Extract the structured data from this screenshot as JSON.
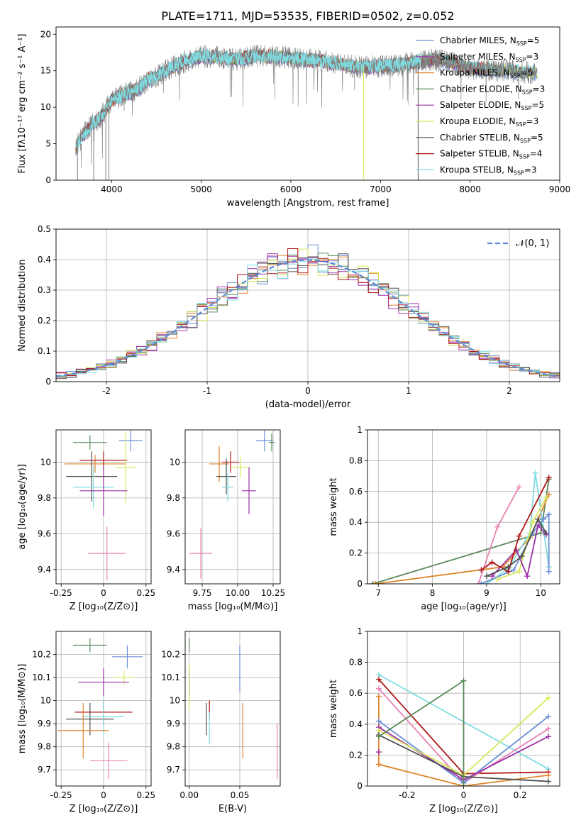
{
  "title": "PLATE=1711, MJD=53535, FIBERID=0502, z=0.052",
  "colors": {
    "Chabrier MILES": "#6b8fd6",
    "Salpeter MILES": "#a63cb0",
    "Kroupa MILES": "#e0852a",
    "Chabrier ELODIE": "#5a8a5a",
    "Salpeter ELODIE": "#9b30a8",
    "Kroupa ELODIE": "#d8e85a",
    "Chabrier STELIB": "#505050",
    "Salpeter STELIB": "#b01818",
    "Kroupa STELIB": "#7fdbe0",
    "pink": "#e882b4",
    "spectrum_grey": "#808080",
    "normal_curve": "#5b88d6"
  },
  "chart_data": [
    {
      "id": "spectrum",
      "type": "line",
      "xlabel": "wavelength [Angstrom, rest frame]",
      "ylabel": "Flux [fλ10⁻¹⁷ erg cm⁻² s⁻¹ A⁻¹]",
      "xlim": [
        3380,
        9000
      ],
      "ylim": [
        0,
        21
      ],
      "xticks": [
        4000,
        5000,
        6000,
        7000,
        8000,
        9000
      ],
      "yticks": [
        0,
        5,
        10,
        15,
        20
      ],
      "grid": false,
      "legend_position": "top-right",
      "legend": [
        {
          "label": "Chabrier MILES, N",
          "sub": "SSP",
          "n": "=5",
          "color": "#6b8fd6"
        },
        {
          "label": "Salpeter MILES, N",
          "sub": "SSP",
          "n": "=3",
          "color": "#a63cb0"
        },
        {
          "label": "Kroupa MILES, N",
          "sub": "SSP",
          "n": "=5",
          "color": "#e0852a"
        },
        {
          "label": "Chabrier ELODIE, N",
          "sub": "SSP",
          "n": "=3",
          "color": "#5a8a5a"
        },
        {
          "label": "Salpeter ELODIE, N",
          "sub": "SSP",
          "n": "=5",
          "color": "#9b30a8"
        },
        {
          "label": "Kroupa ELODIE, N",
          "sub": "SSP",
          "n": "=3",
          "color": "#d8e85a"
        },
        {
          "label": "Chabrier STELIB, N",
          "sub": "SSP",
          "n": "=5",
          "color": "#505050"
        },
        {
          "label": "Salpeter STELIB, N",
          "sub": "SSP",
          "n": "=4",
          "color": "#b01818"
        },
        {
          "label": "Kroupa STELIB, N",
          "sub": "SSP",
          "n": "=3",
          "color": "#7fdbe0"
        }
      ],
      "continuum": {
        "x": [
          3600,
          3700,
          3800,
          3900,
          4000,
          4100,
          4200,
          4300,
          4400,
          4500,
          4600,
          4800,
          5000,
          5200,
          5400,
          5600,
          5800,
          6000,
          6200,
          6400,
          6600,
          6800,
          7000,
          7200,
          7400,
          7600,
          7800,
          8000,
          8200,
          8400,
          8600,
          8750
        ],
        "y": [
          4.5,
          6.5,
          7.8,
          9.0,
          11.0,
          11.5,
          12.0,
          12.5,
          13.8,
          14.2,
          15.0,
          16.2,
          17.0,
          16.8,
          16.5,
          17.0,
          17.0,
          16.8,
          16.5,
          16.2,
          15.8,
          15.5,
          15.6,
          15.8,
          16.2,
          16.5,
          16.2,
          15.3,
          15.2,
          15.0,
          14.8,
          14.7
        ]
      },
      "model_range": [
        3600,
        7450
      ],
      "dropouts": [
        3620,
        3800,
        3935,
        3970,
        6810,
        7420
      ]
    },
    {
      "id": "residuals",
      "type": "histogram",
      "xlabel": "(data-model)/error",
      "ylabel": "Normed distribution",
      "xlim": [
        -2.5,
        2.5
      ],
      "ylim": [
        0,
        0.5
      ],
      "xticks": [
        -2,
        -1,
        0,
        1,
        2
      ],
      "yticks": [
        0,
        0.1,
        0.2,
        0.3,
        0.4,
        0.5
      ],
      "grid": true,
      "legend_position": "top-right",
      "legend_label": "𝒩(0, 1)",
      "bin_width": 0.1,
      "curve": {
        "type": "gaussian",
        "mu": 0,
        "sigma": 1
      }
    },
    {
      "id": "age_vs_Z",
      "type": "errorbar",
      "xlabel": "Z [log₁₀(Z/Z⊙)]",
      "ylabel": "age  [log₁₀(age/yr)]",
      "xlim": [
        -0.28,
        0.28
      ],
      "ylim": [
        9.32,
        10.18
      ],
      "xticks": [
        -0.25,
        0.0,
        0.25
      ],
      "yticks": [
        9.4,
        9.6,
        9.8,
        10.0
      ],
      "grid": true,
      "points": [
        {
          "color": "#6b8fd6",
          "x": 0.16,
          "y": 10.12,
          "xerr": 0.07,
          "yerr": 0.06
        },
        {
          "color": "#5a8a5a",
          "x": -0.08,
          "y": 10.11,
          "xerr": 0.1,
          "yerr": 0.04
        },
        {
          "color": "#e0852a",
          "x": -0.05,
          "y": 9.99,
          "xerr": 0.18,
          "yerr": 0.05
        },
        {
          "color": "#b01818",
          "x": 0.0,
          "y": 10.01,
          "xerr": 0.14,
          "yerr": 0.05
        },
        {
          "color": "#d8e85a",
          "x": 0.13,
          "y": 9.97,
          "xerr": 0.06,
          "yerr": 0.2
        },
        {
          "color": "#505050",
          "x": -0.07,
          "y": 9.92,
          "xerr": 0.15,
          "yerr": 0.14
        },
        {
          "color": "#7fdbe0",
          "x": -0.06,
          "y": 9.86,
          "xerr": 0.12,
          "yerr": 0.12
        },
        {
          "color": "#9b30a8",
          "x": 0.0,
          "y": 9.84,
          "xerr": 0.14,
          "yerr": 0.14
        },
        {
          "color": "#e882b4",
          "x": 0.02,
          "y": 9.49,
          "xerr": 0.11,
          "yerr": 0.15
        }
      ]
    },
    {
      "id": "age_vs_mass",
      "type": "errorbar",
      "xlabel": "mass [log₁₀(M/M⊙)]",
      "ylabel": "",
      "xlim": [
        9.63,
        10.3
      ],
      "ylim": [
        9.32,
        10.18
      ],
      "xticks": [
        9.75,
        10.0,
        10.25
      ],
      "xtick_labels": [
        "9.75",
        "10.00",
        "10.25"
      ],
      "yticks": [
        9.4,
        9.6,
        9.8,
        10.0
      ],
      "grid": true,
      "points": [
        {
          "color": "#6b8fd6",
          "x": 10.19,
          "y": 10.12,
          "xerr": 0.06,
          "yerr": 0.06
        },
        {
          "color": "#5a8a5a",
          "x": 10.24,
          "y": 10.11,
          "xerr": 0.02,
          "yerr": 0.05
        },
        {
          "color": "#e0852a",
          "x": 9.87,
          "y": 9.99,
          "xerr": 0.07,
          "yerr": 0.1
        },
        {
          "color": "#b01818",
          "x": 9.95,
          "y": 10.0,
          "xerr": 0.06,
          "yerr": 0.06
        },
        {
          "color": "#d8e85a",
          "x": 10.02,
          "y": 9.97,
          "xerr": 0.07,
          "yerr": 0.06
        },
        {
          "color": "#505050",
          "x": 9.92,
          "y": 9.92,
          "xerr": 0.07,
          "yerr": 0.1
        },
        {
          "color": "#7fdbe0",
          "x": 9.93,
          "y": 9.86,
          "xerr": 0.04,
          "yerr": 0.08
        },
        {
          "color": "#9b30a8",
          "x": 10.08,
          "y": 9.84,
          "xerr": 0.05,
          "yerr": 0.13
        },
        {
          "color": "#e882b4",
          "x": 9.74,
          "y": 9.49,
          "xerr": 0.08,
          "yerr": 0.14
        }
      ]
    },
    {
      "id": "weight_vs_age",
      "type": "line",
      "xlabel": "age  [log₁₀(age/yr)]",
      "ylabel": "mass weight",
      "xlim": [
        6.8,
        10.35
      ],
      "ylim": [
        0,
        1.0
      ],
      "xticks": [
        7,
        8,
        9,
        10
      ],
      "yticks": [
        0,
        0.2,
        0.4,
        0.6,
        0.8,
        1.0
      ],
      "grid": true,
      "series": [
        {
          "color": "#5a8a5a",
          "x": [
            6.9,
            10.0,
            10.15
          ],
          "y": [
            0.0,
            0.33,
            0.68
          ]
        },
        {
          "color": "#e0852a",
          "x": [
            6.95,
            9.3,
            9.8,
            10.15
          ],
          "y": [
            0.0,
            0.11,
            0.3,
            0.58
          ]
        },
        {
          "color": "#e882b4",
          "x": [
            8.85,
            9.2,
            9.6
          ],
          "y": [
            0.0,
            0.37,
            0.63
          ]
        },
        {
          "color": "#7fdbe0",
          "x": [
            9.0,
            9.4,
            9.8,
            9.9,
            10.15
          ],
          "y": [
            0.0,
            0.1,
            0.33,
            0.72,
            0.11
          ]
        },
        {
          "color": "#6b8fd6",
          "x": [
            8.9,
            9.5,
            9.85,
            10.05,
            10.15,
            10.15
          ],
          "y": [
            0.0,
            0.09,
            0.33,
            0.42,
            0.45,
            0.08
          ]
        },
        {
          "color": "#d8e85a",
          "x": [
            9.2,
            9.6,
            9.85,
            10.1
          ],
          "y": [
            0.03,
            0.08,
            0.4,
            0.56
          ]
        },
        {
          "color": "#9b30a8",
          "x": [
            9.1,
            9.55,
            9.75,
            9.95,
            10.1
          ],
          "y": [
            0.05,
            0.22,
            0.05,
            0.38,
            0.32
          ]
        },
        {
          "color": "#b01818",
          "x": [
            8.9,
            9.1,
            9.4,
            9.6,
            10.15
          ],
          "y": [
            0.09,
            0.14,
            0.08,
            0.31,
            0.69
          ]
        },
        {
          "color": "#505050",
          "x": [
            9.0,
            9.4,
            9.65,
            9.95,
            10.1
          ],
          "y": [
            0.05,
            0.11,
            0.18,
            0.42,
            0.33
          ]
        }
      ]
    },
    {
      "id": "mass_vs_Z",
      "type": "errorbar",
      "xlabel": "Z [log₁₀(Z/Z⊙)]",
      "ylabel": "mass [log₁₀(M/M⊙)]",
      "xlim": [
        -0.28,
        0.28
      ],
      "ylim": [
        9.63,
        10.3
      ],
      "xticks": [
        -0.25,
        0.0,
        0.25
      ],
      "yticks": [
        9.7,
        9.8,
        9.9,
        10.0,
        10.1,
        10.2
      ],
      "grid": true,
      "points": [
        {
          "color": "#5a8a5a",
          "x": -0.08,
          "y": 10.24,
          "xerr": 0.1,
          "yerr": 0.03
        },
        {
          "color": "#6b8fd6",
          "x": 0.14,
          "y": 10.19,
          "xerr": 0.09,
          "yerr": 0.05
        },
        {
          "color": "#d8e85a",
          "x": 0.12,
          "y": 10.1,
          "xerr": 0.06,
          "yerr": 0.03
        },
        {
          "color": "#9b30a8",
          "x": 0.0,
          "y": 10.08,
          "xerr": 0.15,
          "yerr": 0.06
        },
        {
          "color": "#b01818",
          "x": 0.0,
          "y": 9.95,
          "xerr": 0.17,
          "yerr": 0.05
        },
        {
          "color": "#505050",
          "x": -0.08,
          "y": 9.92,
          "xerr": 0.14,
          "yerr": 0.07
        },
        {
          "color": "#7fdbe0",
          "x": 0.0,
          "y": 9.93,
          "xerr": 0.12,
          "yerr": 0.08
        },
        {
          "color": "#e0852a",
          "x": -0.12,
          "y": 9.87,
          "xerr": 0.15,
          "yerr": 0.12
        },
        {
          "color": "#e882b4",
          "x": 0.03,
          "y": 9.74,
          "xerr": 0.11,
          "yerr": 0.08
        }
      ]
    },
    {
      "id": "mass_vs_ebv",
      "type": "errorbar",
      "xlabel": "E(B-V)",
      "ylabel": "",
      "xlim": [
        -0.004,
        0.09
      ],
      "ylim": [
        9.63,
        10.3
      ],
      "xticks": [
        0.0,
        0.05
      ],
      "xtick_labels": [
        "0.00",
        "0.05"
      ],
      "yticks": [
        9.7,
        9.8,
        9.9,
        10.0,
        10.1,
        10.2
      ],
      "grid": true,
      "points": [
        {
          "color": "#5a8a5a",
          "x": 0.0,
          "y": 10.24,
          "xerr": 0,
          "yerr": 0.03
        },
        {
          "color": "#9b30a8",
          "x": 0.0,
          "y": 10.08,
          "xerr": 0,
          "yerr": 0.06
        },
        {
          "color": "#d8e85a",
          "x": 0.0,
          "y": 10.06,
          "xerr": 0,
          "yerr": 0.1
        },
        {
          "color": "#6b8fd6",
          "x": 0.05,
          "y": 10.14,
          "xerr": 0,
          "yerr": 0.1
        },
        {
          "color": "#505050",
          "x": 0.017,
          "y": 9.92,
          "xerr": 0,
          "yerr": 0.07
        },
        {
          "color": "#b01818",
          "x": 0.02,
          "y": 9.96,
          "xerr": 0,
          "yerr": 0.04
        },
        {
          "color": "#7fdbe0",
          "x": 0.02,
          "y": 9.88,
          "xerr": 0,
          "yerr": 0.07
        },
        {
          "color": "#e0852a",
          "x": 0.053,
          "y": 9.87,
          "xerr": 0,
          "yerr": 0.12
        },
        {
          "color": "#e882b4",
          "x": 0.087,
          "y": 9.78,
          "xerr": 0,
          "yerr": 0.12
        }
      ]
    },
    {
      "id": "weight_vs_Z",
      "type": "line",
      "xlabel": "Z [log₁₀(Z/Z⊙)]",
      "ylabel": "mass weight",
      "xlim": [
        -0.34,
        0.34
      ],
      "ylim": [
        0,
        1.0
      ],
      "xticks": [
        -0.2,
        0.0,
        0.2
      ],
      "yticks": [
        0,
        0.2,
        0.4,
        0.6,
        0.8,
        1.0
      ],
      "grid": true,
      "series": [
        {
          "color": "#7fdbe0",
          "x": [
            -0.3,
            0.3
          ],
          "y": [
            0.72,
            0.11
          ]
        },
        {
          "color": "#b01818",
          "x": [
            -0.3,
            0.0,
            0.3
          ],
          "y": [
            0.69,
            0.08,
            0.09
          ]
        },
        {
          "color": "#e882b4",
          "x": [
            -0.3,
            0.0,
            0.3
          ],
          "y": [
            0.63,
            0.02,
            0.37
          ]
        },
        {
          "color": "#e0852a",
          "x": [
            -0.3,
            -0.3,
            0.0,
            0.3
          ],
          "y": [
            0.58,
            0.14,
            0.0,
            0.07
          ]
        },
        {
          "color": "#6b8fd6",
          "x": [
            -0.3,
            0.0,
            0.3
          ],
          "y": [
            0.42,
            0.02,
            0.45
          ]
        },
        {
          "color": "#9b30a8",
          "x": [
            -0.3,
            0.0,
            0.3
          ],
          "y": [
            0.38,
            0.04,
            0.32
          ]
        },
        {
          "color": "#d8e85a",
          "x": [
            -0.3,
            0.0,
            0.3
          ],
          "y": [
            0.36,
            0.07,
            0.57
          ]
        },
        {
          "color": "#505050",
          "x": [
            -0.3,
            0.0,
            0.3
          ],
          "y": [
            0.33,
            0.06,
            0.03
          ]
        },
        {
          "color": "#5a8a5a",
          "x": [
            -0.3,
            0.0,
            0.0
          ],
          "y": [
            0.32,
            0.68,
            0.0
          ]
        },
        {
          "color": "#9b30a8",
          "x": [
            -0.3
          ],
          "y": [
            0.22
          ]
        }
      ]
    }
  ]
}
